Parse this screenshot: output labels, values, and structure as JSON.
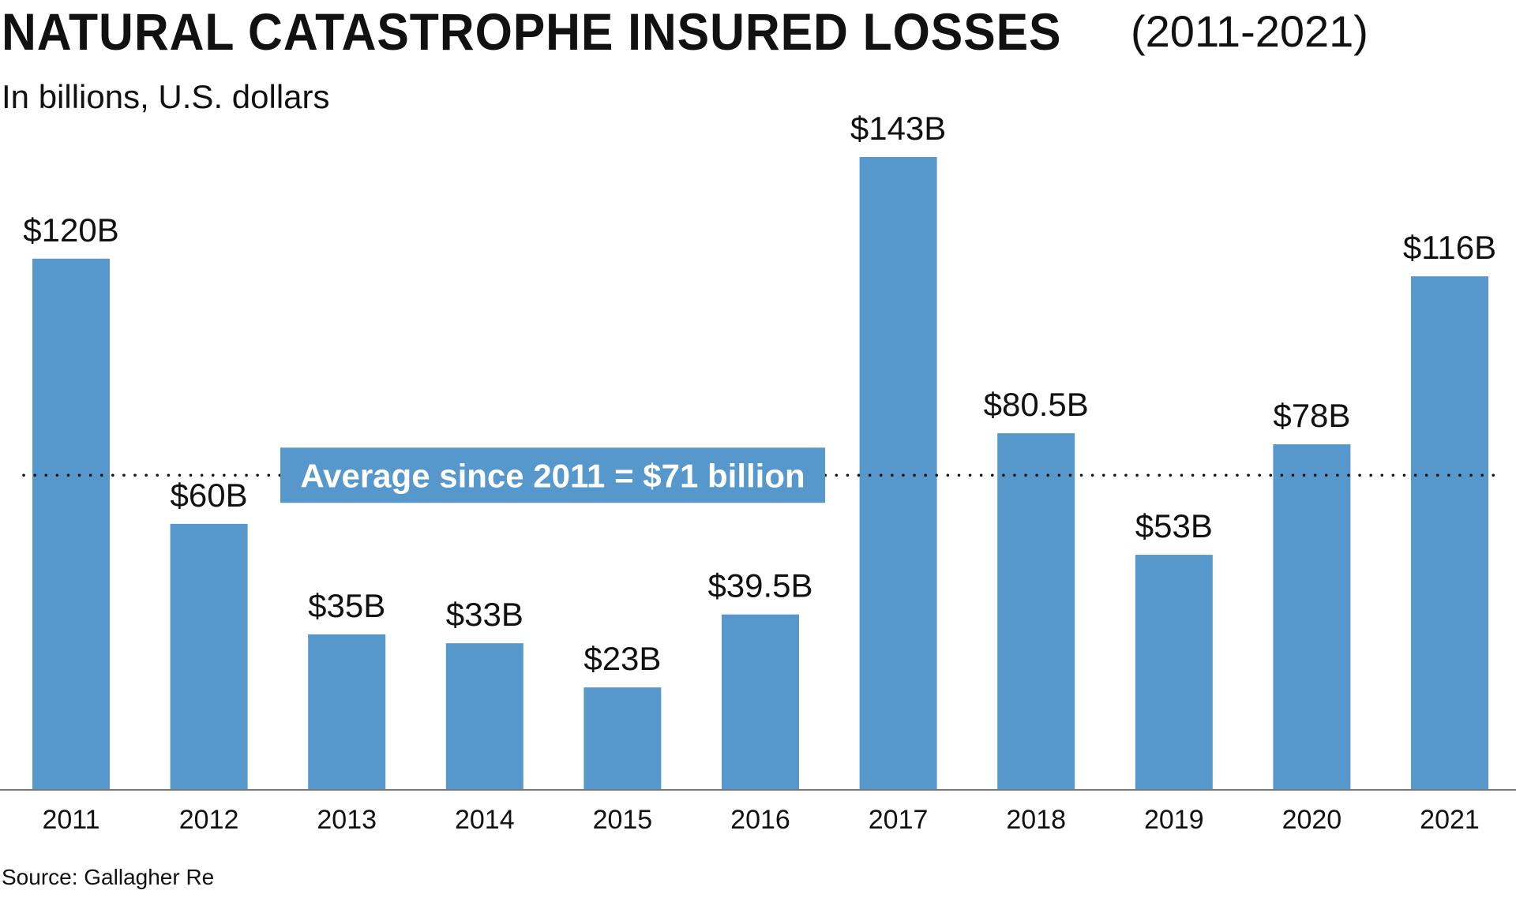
{
  "title": "NATURAL CATASTROPHE INSURED LOSSES",
  "title_range": "(2011-2021)",
  "subtitle": "In billions, U.S. dollars",
  "source": "Source: Gallagher Re",
  "colors": {
    "bar": "#5698cb",
    "text": "#111111",
    "average_box": "#5698cb",
    "average_text": "#ffffff",
    "axis": "#777777"
  },
  "chart_data": {
    "type": "bar",
    "categories": [
      "2011",
      "2012",
      "2013",
      "2014",
      "2015",
      "2016",
      "2017",
      "2018",
      "2019",
      "2020",
      "2021"
    ],
    "values": [
      120,
      60,
      35,
      33,
      23,
      39.5,
      143,
      80.5,
      53,
      78,
      116
    ],
    "data_labels": [
      "$120B",
      "$60B",
      "$35B",
      "$33B",
      "$23B",
      "$39.5B",
      "$143B",
      "$80.5B",
      "$53B",
      "$78B",
      "$116B"
    ],
    "average": {
      "value": 71,
      "label": "Average since 2011 = $71 billion",
      "line_style": "dotted"
    },
    "ylim": [
      0,
      143
    ],
    "grid": false,
    "legend": "none"
  }
}
